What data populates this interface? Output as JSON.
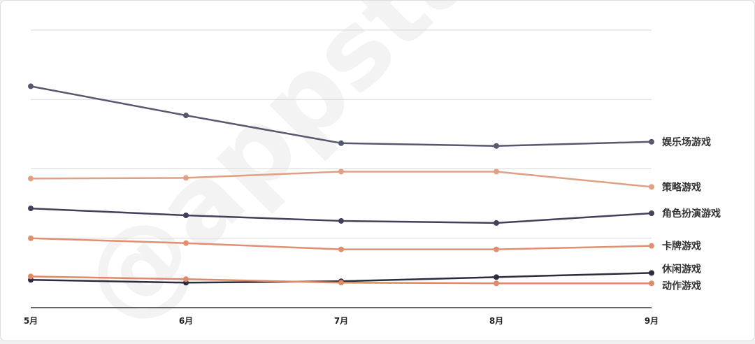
{
  "watermark": "@appstare",
  "chart_data": {
    "type": "line",
    "title": "",
    "xlabel": "",
    "ylabel": "",
    "categories": [
      "5月",
      "6月",
      "7月",
      "8月",
      "9月"
    ],
    "ylim": [
      0,
      4
    ],
    "y_tick_labels_shown": false,
    "grid": true,
    "legend": "end-of-line labels (right)",
    "series": [
      {
        "name": "娱乐场游戏",
        "color": "#565870",
        "values": [
          3.19,
          2.77,
          2.37,
          2.33,
          2.39
        ]
      },
      {
        "name": "策略游戏",
        "color": "#e0a084",
        "values": [
          1.86,
          1.87,
          1.96,
          1.96,
          1.74
        ]
      },
      {
        "name": "角色扮演游戏",
        "color": "#41425a",
        "values": [
          1.43,
          1.33,
          1.25,
          1.22,
          1.36
        ]
      },
      {
        "name": "卡牌游戏",
        "color": "#e08f70",
        "values": [
          1.0,
          0.93,
          0.84,
          0.84,
          0.89
        ]
      },
      {
        "name": "休闲游戏",
        "color": "#2c2d3c",
        "values": [
          0.4,
          0.36,
          0.38,
          0.44,
          0.5
        ]
      },
      {
        "name": "动作游戏",
        "color": "#dc8a68",
        "values": [
          0.45,
          0.41,
          0.36,
          0.35,
          0.35
        ]
      }
    ]
  }
}
